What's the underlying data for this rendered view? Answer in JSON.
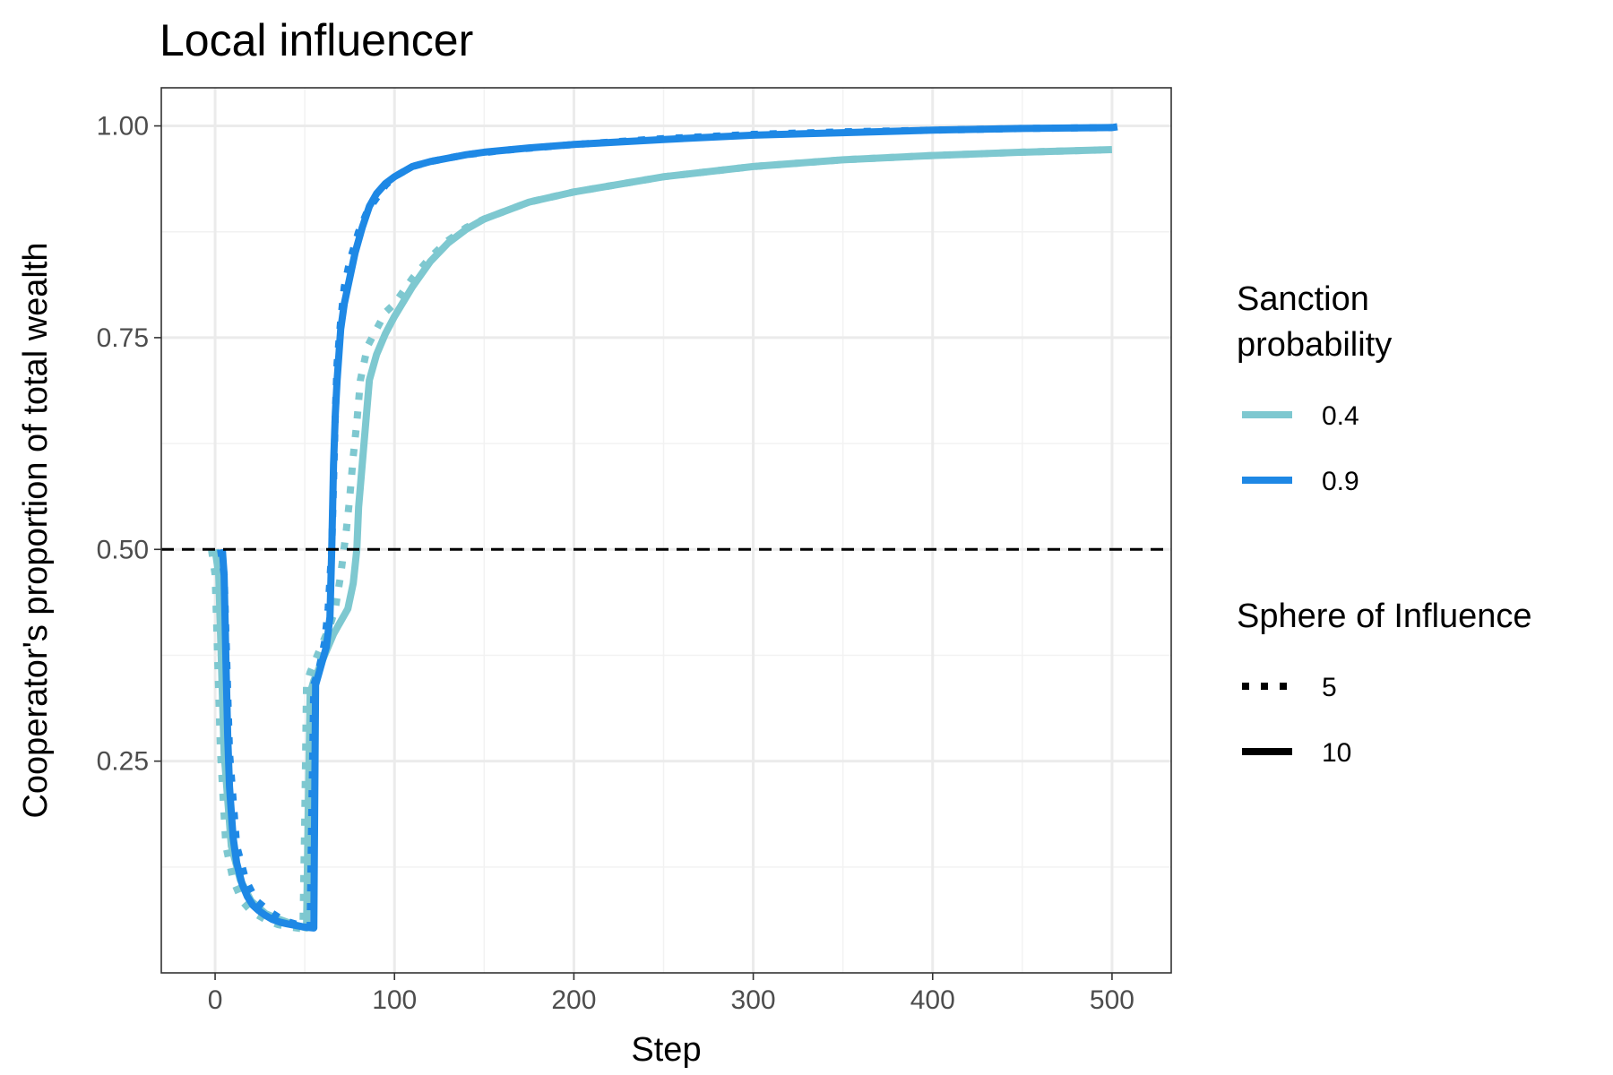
{
  "chart_data": {
    "type": "line",
    "title": "Local influencer",
    "xlabel": "Step",
    "ylabel": "Cooperator's proportion of total wealth",
    "xlim": [
      -30,
      533
    ],
    "ylim": [
      0.0,
      1.045
    ],
    "x_ticks": [
      0,
      100,
      200,
      300,
      400,
      500
    ],
    "y_ticks": [
      0.25,
      0.5,
      0.75,
      1.0
    ],
    "x_tick_labels": [
      "0",
      "100",
      "200",
      "300",
      "400",
      "500"
    ],
    "y_tick_labels": [
      "0.25",
      "0.50",
      "0.75",
      "1.00"
    ],
    "grid": true,
    "reference_line": {
      "y": 0.5,
      "style": "dashed",
      "color": "#000000"
    },
    "legend_position": "right",
    "legends": [
      {
        "title": "Sanction\nprobability",
        "type": "color",
        "entries": [
          {
            "label": "0.4",
            "color": "#7ec8d0"
          },
          {
            "label": "0.9",
            "color": "#1e88e5"
          }
        ]
      },
      {
        "title": "Sphere of Influence",
        "type": "linetype",
        "entries": [
          {
            "label": "5",
            "dash": "dotted"
          },
          {
            "label": "10",
            "dash": "solid"
          }
        ]
      }
    ],
    "series": [
      {
        "sanction": "0.4",
        "sphere": "5",
        "color": "#7ec8d0",
        "dash": "dotted",
        "x": [
          -2,
          0,
          3,
          6,
          10,
          15,
          20,
          28,
          35,
          42,
          49,
          50,
          51,
          53,
          55,
          58,
          61,
          64,
          67,
          70,
          73,
          75,
          77,
          79,
          81,
          83,
          85,
          90,
          95,
          100,
          110,
          120,
          130,
          140,
          150,
          175,
          200,
          250,
          300,
          350,
          400,
          450,
          500
        ],
        "y": [
          0.5,
          0.47,
          0.26,
          0.15,
          0.11,
          0.085,
          0.073,
          0.063,
          0.057,
          0.054,
          0.052,
          0.18,
          0.34,
          0.355,
          0.365,
          0.38,
          0.395,
          0.41,
          0.43,
          0.47,
          0.52,
          0.56,
          0.61,
          0.65,
          0.7,
          0.72,
          0.74,
          0.76,
          0.78,
          0.79,
          0.82,
          0.845,
          0.865,
          0.88,
          0.89,
          0.91,
          0.922,
          0.94,
          0.952,
          0.96,
          0.965,
          0.969,
          0.972
        ]
      },
      {
        "sanction": "0.4",
        "sphere": "10",
        "color": "#7ec8d0",
        "dash": "solid",
        "x": [
          0,
          2,
          5,
          9,
          14,
          20,
          28,
          36,
          44,
          51,
          52,
          53,
          55,
          58,
          62,
          66,
          70,
          74,
          77,
          79,
          80,
          82,
          84,
          86,
          90,
          95,
          100,
          110,
          120,
          130,
          140,
          150,
          175,
          200,
          250,
          300,
          350,
          400,
          450,
          500
        ],
        "y": [
          0.5,
          0.47,
          0.26,
          0.15,
          0.11,
          0.085,
          0.07,
          0.063,
          0.057,
          0.053,
          0.2,
          0.33,
          0.345,
          0.36,
          0.38,
          0.4,
          0.415,
          0.43,
          0.46,
          0.5,
          0.55,
          0.6,
          0.65,
          0.7,
          0.73,
          0.755,
          0.775,
          0.81,
          0.84,
          0.862,
          0.878,
          0.89,
          0.91,
          0.922,
          0.94,
          0.952,
          0.96,
          0.965,
          0.969,
          0.972
        ]
      },
      {
        "sanction": "0.9",
        "sphere": "5",
        "color": "#1e88e5",
        "dash": "dotted",
        "x": [
          3,
          5,
          8,
          12,
          17,
          23,
          30,
          38,
          46,
          53,
          54,
          55,
          58,
          61,
          63,
          65,
          66,
          67,
          68,
          70,
          72,
          75,
          80,
          85,
          90,
          95,
          100,
          110,
          120,
          140,
          160,
          200,
          250,
          300,
          350,
          400,
          450,
          500
        ],
        "y": [
          0.5,
          0.47,
          0.26,
          0.15,
          0.11,
          0.085,
          0.073,
          0.062,
          0.057,
          0.055,
          0.2,
          0.34,
          0.36,
          0.39,
          0.43,
          0.5,
          0.58,
          0.66,
          0.72,
          0.77,
          0.81,
          0.84,
          0.875,
          0.9,
          0.915,
          0.93,
          0.94,
          0.952,
          0.958,
          0.966,
          0.971,
          0.978,
          0.985,
          0.99,
          0.993,
          0.995,
          0.997,
          0.998
        ]
      },
      {
        "sanction": "0.9",
        "sphere": "10",
        "color": "#1e88e5",
        "dash": "solid",
        "x": [
          4,
          5,
          6,
          7,
          8,
          10,
          12,
          15,
          18,
          21,
          24,
          28,
          32,
          36,
          40,
          45,
          50,
          55,
          55.5,
          56,
          58,
          60,
          62,
          64,
          65,
          66,
          67,
          68,
          69,
          70,
          72,
          75,
          78,
          82,
          86,
          90,
          95,
          100,
          110,
          120,
          130,
          140,
          150,
          175,
          200,
          250,
          300,
          350,
          400,
          450,
          500,
          503
        ],
        "y": [
          0.5,
          0.47,
          0.37,
          0.28,
          0.22,
          0.16,
          0.13,
          0.105,
          0.09,
          0.08,
          0.074,
          0.068,
          0.063,
          0.06,
          0.058,
          0.056,
          0.054,
          0.053,
          0.2,
          0.34,
          0.355,
          0.37,
          0.385,
          0.42,
          0.5,
          0.6,
          0.66,
          0.7,
          0.73,
          0.76,
          0.79,
          0.82,
          0.85,
          0.88,
          0.905,
          0.92,
          0.932,
          0.94,
          0.952,
          0.958,
          0.962,
          0.966,
          0.969,
          0.974,
          0.978,
          0.984,
          0.989,
          0.992,
          0.995,
          0.997,
          0.998,
          0.999
        ]
      }
    ]
  }
}
